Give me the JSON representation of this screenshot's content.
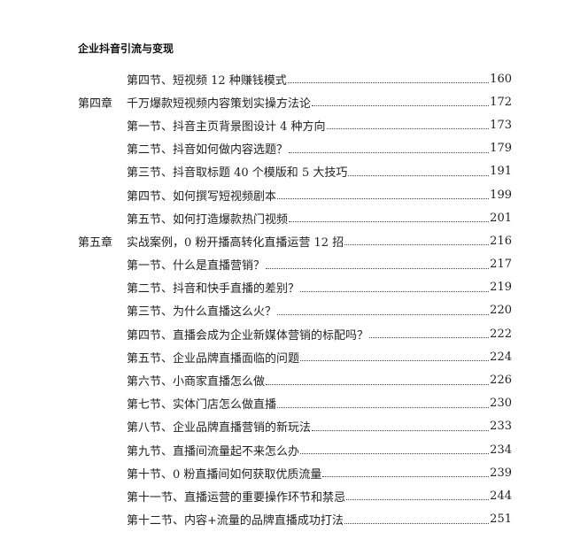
{
  "header": {
    "title": "企业抖音引流与变现"
  },
  "toc": [
    {
      "chapter": "",
      "title": "第四节、短视频 12 种赚钱模式",
      "page": "160"
    },
    {
      "chapter": "第四章",
      "title": "千万爆款短视频内容策划实操方法论",
      "page": "172"
    },
    {
      "chapter": "",
      "title": "第一节、抖音主页背景图设计 4 种方向",
      "page": "173"
    },
    {
      "chapter": "",
      "title": "第二节、抖音如何做内容选题？",
      "page": "179"
    },
    {
      "chapter": "",
      "title": "第三节、抖音取标题 40 个模版和 5 大技巧",
      "page": "191"
    },
    {
      "chapter": "",
      "title": "第四节、如何撰写短视频剧本",
      "page": "199"
    },
    {
      "chapter": "",
      "title": "第五节、如何打造爆款热门视频",
      "page": "201"
    },
    {
      "chapter": "第五章",
      "title": "实战案例，0 粉开播高转化直播运营 12 招",
      "page": "216"
    },
    {
      "chapter": "",
      "title": "第一节、什么是直播营销？",
      "page": "217"
    },
    {
      "chapter": "",
      "title": "第二节、抖音和快手直播的差别？",
      "page": "219"
    },
    {
      "chapter": "",
      "title": "第三节、为什么直播这么火？",
      "page": "220"
    },
    {
      "chapter": "",
      "title": "第四节、直播会成为企业新媒体营销的标配吗？",
      "page": "222"
    },
    {
      "chapter": "",
      "title": "第五节、企业品牌直播面临的问题",
      "page": "224"
    },
    {
      "chapter": "",
      "title": "第六节、小商家直播怎么做",
      "page": "226"
    },
    {
      "chapter": "",
      "title": "第七节、实体门店怎么做直播",
      "page": "230"
    },
    {
      "chapter": "",
      "title": "第八节、企业品牌直播营销的新玩法",
      "page": "233"
    },
    {
      "chapter": "",
      "title": "第九节、直播间流量起不来怎么办",
      "page": "234"
    },
    {
      "chapter": "",
      "title": "第十节、0 粉直播间如何获取优质流量",
      "page": "239"
    },
    {
      "chapter": "",
      "title": "第十一节、直播运营的重要操作环节和禁忌",
      "page": "244"
    },
    {
      "chapter": "",
      "title": "第十二节、内容+流量的品牌直播成功打法",
      "page": "251"
    }
  ]
}
